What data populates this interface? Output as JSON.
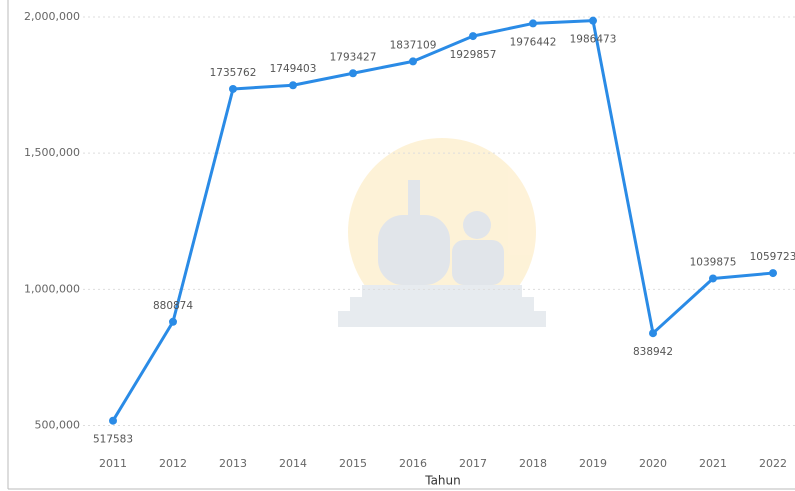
{
  "chart_data": {
    "type": "line",
    "x_label": "Tahun",
    "categories": [
      "2011",
      "2012",
      "2013",
      "2014",
      "2015",
      "2016",
      "2017",
      "2018",
      "2019",
      "2020",
      "2021",
      "2022"
    ],
    "series": [
      {
        "color": "#2a8be6",
        "values": [
          517583,
          880874,
          1735762,
          1749403,
          1793427,
          1837109,
          1929857,
          1976442,
          1986473,
          838942,
          1039875,
          1059723
        ]
      }
    ],
    "ylim": [
      410000,
      2000000
    ],
    "yticks": [
      {
        "value": 500000,
        "label": "500,000"
      },
      {
        "value": 1000000,
        "label": "1,000,000"
      },
      {
        "value": 1500000,
        "label": "1,500,000"
      },
      {
        "value": 2000000,
        "label": "2,000,000"
      }
    ],
    "grid": true
  }
}
